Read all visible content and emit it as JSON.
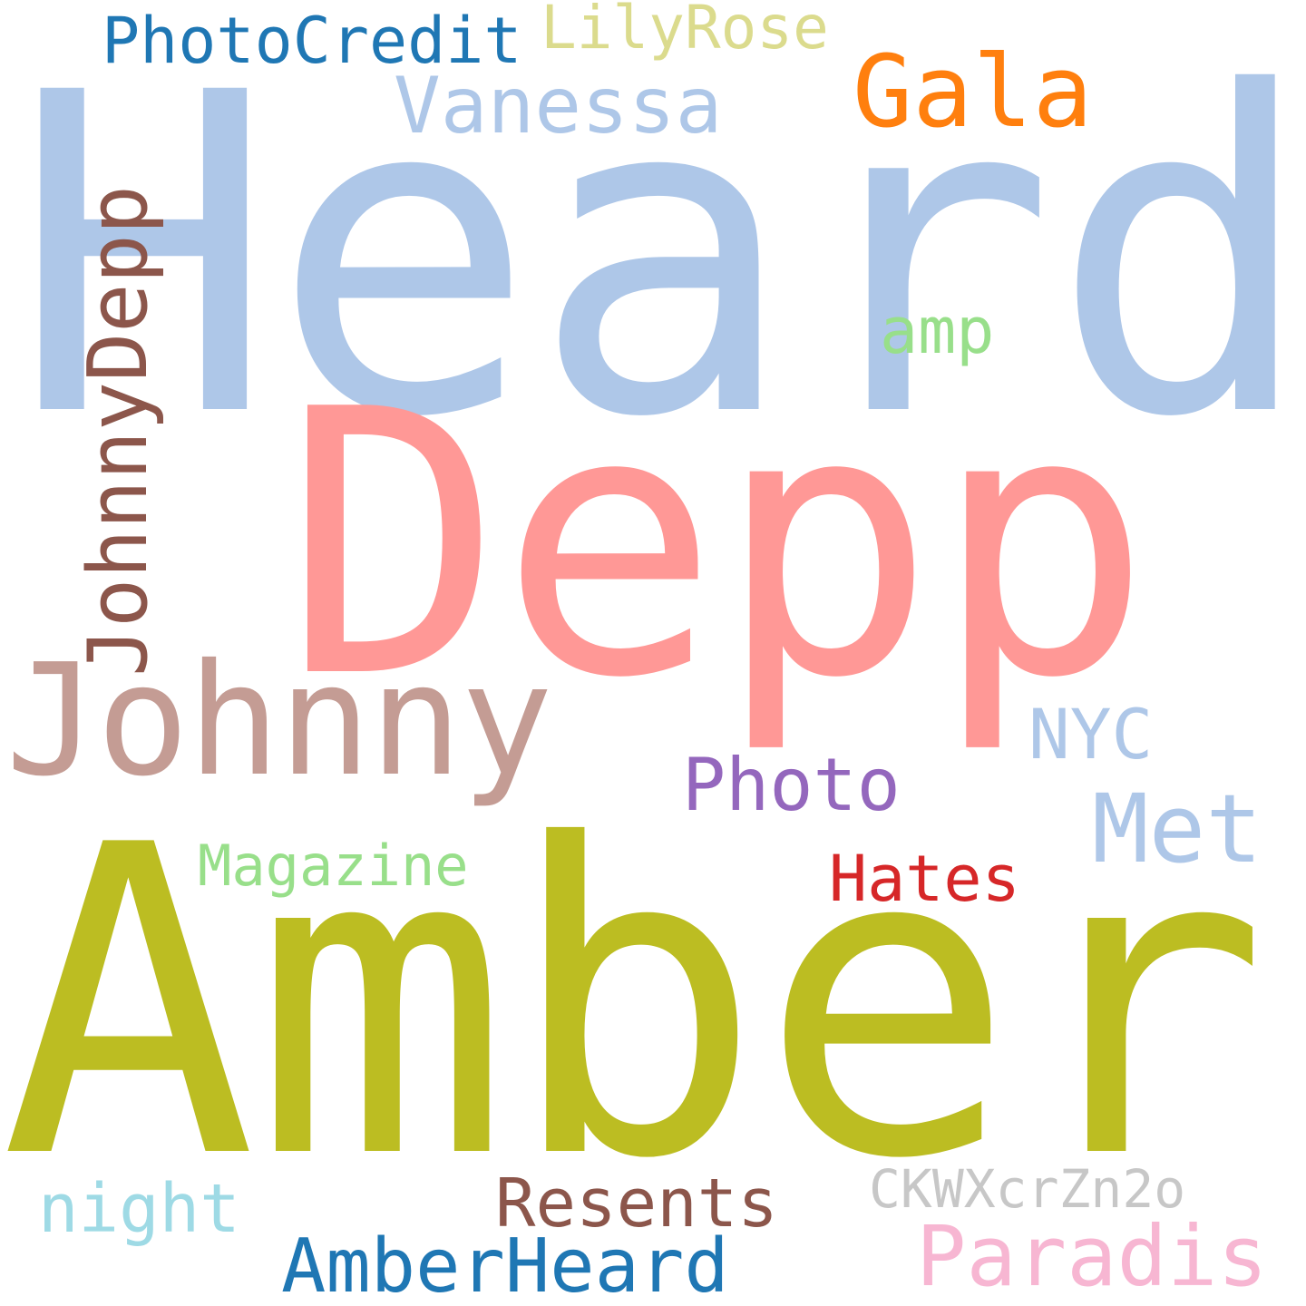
{
  "words": {
    "heard": {
      "text": "Heard",
      "color": "#aec7e8"
    },
    "depp": {
      "text": "Depp",
      "color": "#ff9896"
    },
    "amber": {
      "text": "Amber",
      "color": "#bcbd22"
    },
    "johnny": {
      "text": "Johnny",
      "color": "#c49c94"
    },
    "johnnydepp": {
      "text": "JohnnyDepp",
      "color": "#8c564b"
    },
    "vanessa": {
      "text": "Vanessa",
      "color": "#aec7e8"
    },
    "gala": {
      "text": "Gala",
      "color": "#ff7f0e"
    },
    "photocredit": {
      "text": "PhotoCredit",
      "color": "#1f77b4"
    },
    "lilyrose": {
      "text": "LilyRose",
      "color": "#dbdb8d"
    },
    "amp": {
      "text": "amp",
      "color": "#98df8a"
    },
    "nyc": {
      "text": "NYC",
      "color": "#aec7e8"
    },
    "met": {
      "text": "Met",
      "color": "#aec7e8"
    },
    "photo": {
      "text": "Photo",
      "color": "#9467bd"
    },
    "magazine": {
      "text": "Magazine",
      "color": "#98df8a"
    },
    "hates": {
      "text": "Hates",
      "color": "#d62728"
    },
    "night": {
      "text": "night",
      "color": "#9edae5"
    },
    "resents": {
      "text": "Resents",
      "color": "#8c564b"
    },
    "ckwx": {
      "text": "CKWXcrZn2o",
      "color": "#c7c7c7"
    },
    "amberheard": {
      "text": "AmberHeard",
      "color": "#1f77b4"
    },
    "paradis": {
      "text": "Paradis",
      "color": "#f7b6d2"
    }
  }
}
